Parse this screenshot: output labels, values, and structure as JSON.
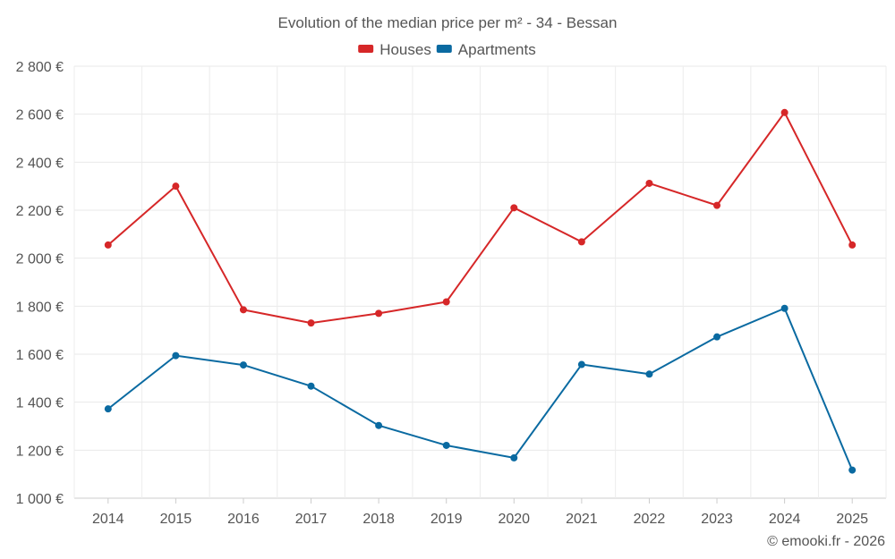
{
  "chart_data": {
    "type": "line",
    "title": "Evolution of the median price per m² - 34 - Bessan",
    "categories": [
      "2014",
      "2015",
      "2016",
      "2017",
      "2018",
      "2019",
      "2020",
      "2021",
      "2022",
      "2023",
      "2024",
      "2025"
    ],
    "series": [
      {
        "name": "Houses",
        "color": "#d62728",
        "values": [
          2055,
          2300,
          1785,
          1730,
          1770,
          1818,
          2210,
          2068,
          2312,
          2220,
          2607,
          2055
        ]
      },
      {
        "name": "Apartments",
        "color": "#0a6aa1",
        "values": [
          1372,
          1594,
          1555,
          1467,
          1303,
          1220,
          1168,
          1557,
          1517,
          1672,
          1791,
          1117
        ]
      }
    ],
    "ylim": [
      1000,
      2800
    ],
    "yticks": [
      1000,
      1200,
      1400,
      1600,
      1800,
      2000,
      2200,
      2400,
      2600,
      2800
    ],
    "ytick_labels": [
      "1 000 €",
      "1 200 €",
      "1 400 €",
      "1 600 €",
      "1 800 €",
      "2 000 €",
      "2 200 €",
      "2 400 €",
      "2 600 €",
      "2 800 €"
    ],
    "xlabel": "",
    "ylabel": "",
    "legend_position": "top-center",
    "grid": true
  },
  "credit": "© emooki.fr - 2026"
}
